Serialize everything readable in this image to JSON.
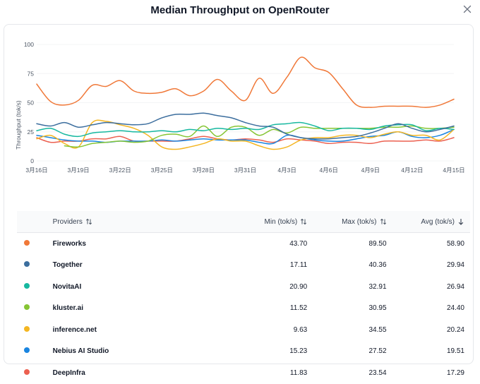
{
  "modal": {
    "title": "Median Throughput on OpenRouter"
  },
  "chart_data": {
    "type": "line",
    "ylabel": "Throughput (tok/s)",
    "xlabel": "",
    "ylim": [
      0,
      100
    ],
    "yticks": [
      0,
      25,
      50,
      75,
      100
    ],
    "x": [
      "3月16日",
      "3月17日",
      "3月18日",
      "3月19日",
      "3月20日",
      "3月21日",
      "3月22日",
      "3月23日",
      "3月24日",
      "3月25日",
      "3月26日",
      "3月27日",
      "3月28日",
      "3月29日",
      "3月30日",
      "3月31日",
      "4月1日",
      "4月2日",
      "4月3日",
      "4月4日",
      "4月5日",
      "4月6日",
      "4月7日",
      "4月8日",
      "4月9日",
      "4月10日",
      "4月11日",
      "4月12日",
      "4月13日",
      "4月14日",
      "4月15日"
    ],
    "xtick_labels": [
      "3月16日",
      "3月19日",
      "3月22日",
      "3月25日",
      "3月28日",
      "3月31日",
      "4月3日",
      "4月6日",
      "4月9日",
      "4月12日",
      "4月15日"
    ],
    "series": [
      {
        "name": "Fireworks",
        "color": "#f07838",
        "values": [
          66,
          51,
          48,
          52,
          65,
          64,
          69,
          60,
          58,
          59,
          62,
          56,
          60,
          70,
          60,
          52,
          71,
          58,
          72,
          89,
          80,
          76,
          62,
          48,
          46,
          47,
          47,
          47,
          46,
          48,
          53
        ]
      },
      {
        "name": "Together",
        "color": "#3c6e9e",
        "values": [
          32,
          30,
          33,
          29,
          31,
          33,
          32,
          31,
          32,
          37,
          40,
          40,
          41,
          39,
          37,
          33,
          30,
          29,
          23,
          20,
          19,
          19,
          20,
          21,
          24,
          28,
          32,
          28,
          25,
          27,
          30
        ]
      },
      {
        "name": "NovitaAI",
        "color": "#17b8a0",
        "values": [
          26,
          28,
          23,
          21,
          24,
          25,
          26,
          25,
          25,
          26,
          25,
          27,
          26,
          28,
          27,
          28,
          27,
          31,
          32,
          33,
          30,
          26,
          28,
          28,
          27,
          30,
          31,
          31,
          26,
          28,
          27
        ]
      },
      {
        "name": "kluster.ai",
        "color": "#86c534",
        "values": [
          null,
          null,
          13,
          12,
          15,
          16,
          17,
          16,
          17,
          22,
          23,
          21,
          30,
          21,
          29,
          29,
          22,
          27,
          24,
          29,
          28,
          28,
          28,
          28,
          28,
          29,
          29,
          30,
          28,
          28,
          29
        ]
      },
      {
        "name": "inference.net",
        "color": "#f4b622",
        "values": [
          19,
          22,
          15,
          12,
          33,
          34,
          31,
          28,
          22,
          12,
          10,
          12,
          15,
          19,
          17,
          17,
          13,
          10,
          12,
          18,
          20,
          20,
          22,
          22,
          20,
          23,
          25,
          22,
          22,
          18,
          27
        ]
      },
      {
        "name": "Nebius AI Studio",
        "color": "#1a85e0",
        "values": [
          22,
          20,
          18,
          17,
          17,
          16,
          17,
          17,
          17,
          18,
          17,
          18,
          19,
          18,
          18,
          18,
          16,
          15,
          22,
          20,
          18,
          17,
          17,
          19,
          21,
          22,
          25,
          21,
          20,
          22,
          27
        ]
      },
      {
        "name": "DeepInfra",
        "color": "#ec6050",
        "values": [
          20,
          16,
          17,
          17,
          19,
          19,
          21,
          17,
          17,
          17,
          17,
          19,
          21,
          19,
          18,
          19,
          18,
          16,
          19,
          18,
          17,
          15,
          16,
          16,
          15,
          17,
          17,
          17,
          18,
          17,
          20
        ]
      }
    ]
  },
  "table": {
    "columns": [
      {
        "label": "Providers",
        "sort": "both"
      },
      {
        "label": "Min (tok/s)",
        "sort": "both"
      },
      {
        "label": "Max (tok/s)",
        "sort": "both"
      },
      {
        "label": "Avg (tok/s)",
        "sort": "down"
      }
    ],
    "rows": [
      {
        "name": "Fireworks",
        "color": "#f07838",
        "min": "43.70",
        "max": "89.50",
        "avg": "58.90"
      },
      {
        "name": "Together",
        "color": "#3c6e9e",
        "min": "17.11",
        "max": "40.36",
        "avg": "29.94"
      },
      {
        "name": "NovitaAI",
        "color": "#17b8a0",
        "min": "20.90",
        "max": "32.91",
        "avg": "26.94"
      },
      {
        "name": "kluster.ai",
        "color": "#86c534",
        "min": "11.52",
        "max": "30.95",
        "avg": "24.40"
      },
      {
        "name": "inference.net",
        "color": "#f4b622",
        "min": "9.63",
        "max": "34.55",
        "avg": "20.24"
      },
      {
        "name": "Nebius AI Studio",
        "color": "#1a85e0",
        "min": "15.23",
        "max": "27.52",
        "avg": "19.51"
      },
      {
        "name": "DeepInfra",
        "color": "#ec6050",
        "min": "11.83",
        "max": "23.54",
        "avg": "17.29"
      }
    ]
  }
}
